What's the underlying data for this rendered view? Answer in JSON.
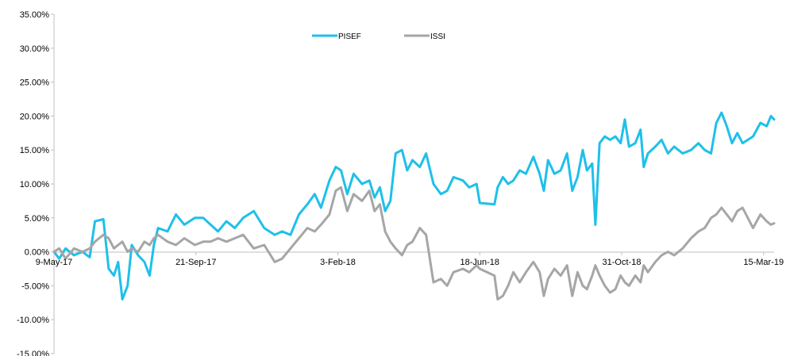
{
  "chart_data": {
    "type": "line",
    "title": "",
    "xlabel": "",
    "ylabel": "",
    "ylim": [
      -15,
      35
    ],
    "y_ticks": [
      35,
      30,
      25,
      20,
      15,
      10,
      5,
      0,
      -5,
      -10,
      -15
    ],
    "y_tick_labels": [
      "35.00%",
      "30.00%",
      "25.00%",
      "20.00%",
      "15.00%",
      "10.00%",
      "5.00%",
      "0.00%",
      "-5.00%",
      "-10.00%",
      "-15.00%"
    ],
    "x_range": [
      "2017-05-09",
      "2019-03-25"
    ],
    "x_tick_labels": [
      {
        "date": "2017-05-09",
        "label": "9-May-17"
      },
      {
        "date": "2017-09-21",
        "label": "21-Sep-17"
      },
      {
        "date": "2018-02-03",
        "label": "3-Feb-18"
      },
      {
        "date": "2018-06-18",
        "label": "18-Jun-18"
      },
      {
        "date": "2018-10-31",
        "label": "31-Oct-18"
      },
      {
        "date": "2019-03-15",
        "label": "15-Mar-19"
      }
    ],
    "legend": {
      "position": "top-center",
      "entries": [
        "PISEF",
        "ISSI"
      ]
    },
    "grid": false,
    "series": [
      {
        "name": "PISEF",
        "color": "#1ec0ea",
        "points": [
          [
            "2017-05-09",
            0.0
          ],
          [
            "2017-05-14",
            -1.0
          ],
          [
            "2017-05-20",
            0.5
          ],
          [
            "2017-05-28",
            -0.5
          ],
          [
            "2017-06-05",
            0.0
          ],
          [
            "2017-06-12",
            -0.8
          ],
          [
            "2017-06-17",
            4.5
          ],
          [
            "2017-06-25",
            4.8
          ],
          [
            "2017-06-30",
            -2.5
          ],
          [
            "2017-07-05",
            -3.5
          ],
          [
            "2017-07-09",
            -1.5
          ],
          [
            "2017-07-13",
            -7.0
          ],
          [
            "2017-07-18",
            -5.0
          ],
          [
            "2017-07-22",
            1.0
          ],
          [
            "2017-07-28",
            -0.5
          ],
          [
            "2017-08-03",
            -1.5
          ],
          [
            "2017-08-08",
            -3.5
          ],
          [
            "2017-08-12",
            1.0
          ],
          [
            "2017-08-16",
            3.5
          ],
          [
            "2017-08-25",
            3.0
          ],
          [
            "2017-09-02",
            5.5
          ],
          [
            "2017-09-10",
            4.0
          ],
          [
            "2017-09-20",
            5.0
          ],
          [
            "2017-09-28",
            5.0
          ],
          [
            "2017-10-05",
            4.0
          ],
          [
            "2017-10-12",
            3.0
          ],
          [
            "2017-10-20",
            4.5
          ],
          [
            "2017-10-28",
            3.5
          ],
          [
            "2017-11-05",
            5.0
          ],
          [
            "2017-11-15",
            6.0
          ],
          [
            "2017-11-25",
            3.5
          ],
          [
            "2017-12-05",
            2.5
          ],
          [
            "2017-12-12",
            3.0
          ],
          [
            "2017-12-20",
            2.5
          ],
          [
            "2017-12-28",
            5.5
          ],
          [
            "2018-01-05",
            7.0
          ],
          [
            "2018-01-12",
            8.5
          ],
          [
            "2018-01-18",
            6.5
          ],
          [
            "2018-01-26",
            10.5
          ],
          [
            "2018-02-01",
            12.5
          ],
          [
            "2018-02-06",
            12.0
          ],
          [
            "2018-02-12",
            8.5
          ],
          [
            "2018-02-18",
            11.5
          ],
          [
            "2018-02-26",
            10.0
          ],
          [
            "2018-03-05",
            10.5
          ],
          [
            "2018-03-10",
            8.0
          ],
          [
            "2018-03-15",
            9.5
          ],
          [
            "2018-03-20",
            6.0
          ],
          [
            "2018-03-25",
            7.5
          ],
          [
            "2018-03-30",
            14.5
          ],
          [
            "2018-04-05",
            15.0
          ],
          [
            "2018-04-10",
            12.0
          ],
          [
            "2018-04-15",
            13.5
          ],
          [
            "2018-04-22",
            12.5
          ],
          [
            "2018-04-28",
            14.5
          ],
          [
            "2018-05-05",
            10.0
          ],
          [
            "2018-05-12",
            8.5
          ],
          [
            "2018-05-18",
            9.0
          ],
          [
            "2018-05-24",
            11.0
          ],
          [
            "2018-06-02",
            10.5
          ],
          [
            "2018-06-08",
            9.5
          ],
          [
            "2018-06-15",
            10.0
          ],
          [
            "2018-06-18",
            7.2
          ],
          [
            "2018-07-02",
            7.0
          ],
          [
            "2018-07-05",
            9.5
          ],
          [
            "2018-07-10",
            11.0
          ],
          [
            "2018-07-15",
            10.0
          ],
          [
            "2018-07-20",
            10.5
          ],
          [
            "2018-07-26",
            12.0
          ],
          [
            "2018-08-01",
            11.5
          ],
          [
            "2018-08-08",
            14.0
          ],
          [
            "2018-08-14",
            11.5
          ],
          [
            "2018-08-18",
            9.0
          ],
          [
            "2018-08-22",
            13.5
          ],
          [
            "2018-08-28",
            11.5
          ],
          [
            "2018-09-03",
            12.0
          ],
          [
            "2018-09-09",
            14.5
          ],
          [
            "2018-09-14",
            9.0
          ],
          [
            "2018-09-19",
            11.0
          ],
          [
            "2018-09-24",
            15.0
          ],
          [
            "2018-09-28",
            12.0
          ],
          [
            "2018-10-03",
            13.0
          ],
          [
            "2018-10-06",
            4.0
          ],
          [
            "2018-10-10",
            16.0
          ],
          [
            "2018-10-15",
            17.0
          ],
          [
            "2018-10-20",
            16.5
          ],
          [
            "2018-10-25",
            17.0
          ],
          [
            "2018-10-30",
            16.0
          ],
          [
            "2018-11-03",
            19.5
          ],
          [
            "2018-11-07",
            15.5
          ],
          [
            "2018-11-13",
            16.0
          ],
          [
            "2018-11-18",
            18.0
          ],
          [
            "2018-11-21",
            12.5
          ],
          [
            "2018-11-25",
            14.5
          ],
          [
            "2018-12-02",
            15.5
          ],
          [
            "2018-12-08",
            16.5
          ],
          [
            "2018-12-14",
            14.5
          ],
          [
            "2018-12-20",
            15.5
          ],
          [
            "2018-12-28",
            14.5
          ],
          [
            "2019-01-05",
            15.0
          ],
          [
            "2019-01-12",
            16.0
          ],
          [
            "2019-01-18",
            15.0
          ],
          [
            "2019-01-24",
            14.5
          ],
          [
            "2019-01-29",
            19.0
          ],
          [
            "2019-02-03",
            20.5
          ],
          [
            "2019-02-08",
            18.5
          ],
          [
            "2019-02-13",
            16.0
          ],
          [
            "2019-02-18",
            17.5
          ],
          [
            "2019-02-23",
            16.0
          ],
          [
            "2019-02-28",
            16.5
          ],
          [
            "2019-03-05",
            17.0
          ],
          [
            "2019-03-12",
            19.0
          ],
          [
            "2019-03-18",
            18.5
          ],
          [
            "2019-03-22",
            20.0
          ],
          [
            "2019-03-25",
            19.5
          ]
        ]
      },
      {
        "name": "ISSI",
        "color": "#a6a6a6",
        "points": [
          [
            "2017-05-09",
            0.0
          ],
          [
            "2017-05-14",
            0.5
          ],
          [
            "2017-05-20",
            -1.0
          ],
          [
            "2017-05-28",
            0.5
          ],
          [
            "2017-06-05",
            0.0
          ],
          [
            "2017-06-12",
            0.5
          ],
          [
            "2017-06-17",
            1.5
          ],
          [
            "2017-06-25",
            2.5
          ],
          [
            "2017-06-30",
            2.0
          ],
          [
            "2017-07-05",
            0.5
          ],
          [
            "2017-07-09",
            1.0
          ],
          [
            "2017-07-13",
            1.5
          ],
          [
            "2017-07-18",
            0.0
          ],
          [
            "2017-07-22",
            0.5
          ],
          [
            "2017-07-28",
            0.0
          ],
          [
            "2017-08-03",
            1.5
          ],
          [
            "2017-08-08",
            1.0
          ],
          [
            "2017-08-12",
            2.0
          ],
          [
            "2017-08-16",
            2.5
          ],
          [
            "2017-08-25",
            1.5
          ],
          [
            "2017-09-02",
            1.0
          ],
          [
            "2017-09-10",
            2.0
          ],
          [
            "2017-09-20",
            1.0
          ],
          [
            "2017-09-28",
            1.5
          ],
          [
            "2017-10-05",
            1.5
          ],
          [
            "2017-10-12",
            2.0
          ],
          [
            "2017-10-20",
            1.5
          ],
          [
            "2017-10-28",
            2.0
          ],
          [
            "2017-11-05",
            2.5
          ],
          [
            "2017-11-15",
            0.5
          ],
          [
            "2017-11-25",
            1.0
          ],
          [
            "2017-12-05",
            -1.5
          ],
          [
            "2017-12-12",
            -1.0
          ],
          [
            "2017-12-20",
            0.5
          ],
          [
            "2017-12-28",
            2.0
          ],
          [
            "2018-01-05",
            3.5
          ],
          [
            "2018-01-12",
            3.0
          ],
          [
            "2018-01-18",
            4.0
          ],
          [
            "2018-01-26",
            5.5
          ],
          [
            "2018-02-01",
            9.0
          ],
          [
            "2018-02-06",
            9.5
          ],
          [
            "2018-02-12",
            6.0
          ],
          [
            "2018-02-18",
            8.5
          ],
          [
            "2018-02-26",
            7.5
          ],
          [
            "2018-03-05",
            9.0
          ],
          [
            "2018-03-10",
            6.0
          ],
          [
            "2018-03-15",
            7.0
          ],
          [
            "2018-03-20",
            3.0
          ],
          [
            "2018-03-25",
            1.5
          ],
          [
            "2018-03-30",
            0.5
          ],
          [
            "2018-04-05",
            -0.5
          ],
          [
            "2018-04-10",
            1.0
          ],
          [
            "2018-04-15",
            1.5
          ],
          [
            "2018-04-22",
            3.5
          ],
          [
            "2018-04-28",
            2.5
          ],
          [
            "2018-05-05",
            -4.5
          ],
          [
            "2018-05-12",
            -4.0
          ],
          [
            "2018-05-18",
            -5.0
          ],
          [
            "2018-05-24",
            -3.0
          ],
          [
            "2018-06-02",
            -2.5
          ],
          [
            "2018-06-08",
            -3.0
          ],
          [
            "2018-06-15",
            -2.0
          ],
          [
            "2018-06-18",
            -2.5
          ],
          [
            "2018-07-02",
            -3.5
          ],
          [
            "2018-07-05",
            -7.0
          ],
          [
            "2018-07-10",
            -6.5
          ],
          [
            "2018-07-15",
            -5.0
          ],
          [
            "2018-07-20",
            -3.0
          ],
          [
            "2018-07-26",
            -4.5
          ],
          [
            "2018-08-01",
            -3.0
          ],
          [
            "2018-08-08",
            -1.5
          ],
          [
            "2018-08-14",
            -3.0
          ],
          [
            "2018-08-18",
            -6.5
          ],
          [
            "2018-08-22",
            -4.0
          ],
          [
            "2018-08-28",
            -2.5
          ],
          [
            "2018-09-03",
            -3.5
          ],
          [
            "2018-09-09",
            -2.0
          ],
          [
            "2018-09-14",
            -6.5
          ],
          [
            "2018-09-19",
            -3.0
          ],
          [
            "2018-09-24",
            -5.0
          ],
          [
            "2018-09-28",
            -5.5
          ],
          [
            "2018-10-03",
            -3.5
          ],
          [
            "2018-10-06",
            -2.0
          ],
          [
            "2018-10-10",
            -3.5
          ],
          [
            "2018-10-15",
            -5.0
          ],
          [
            "2018-10-20",
            -6.0
          ],
          [
            "2018-10-25",
            -5.5
          ],
          [
            "2018-10-30",
            -3.5
          ],
          [
            "2018-11-03",
            -4.5
          ],
          [
            "2018-11-07",
            -5.0
          ],
          [
            "2018-11-13",
            -3.5
          ],
          [
            "2018-11-18",
            -4.5
          ],
          [
            "2018-11-21",
            -2.0
          ],
          [
            "2018-11-25",
            -3.0
          ],
          [
            "2018-12-02",
            -1.5
          ],
          [
            "2018-12-08",
            -0.5
          ],
          [
            "2018-12-14",
            0.0
          ],
          [
            "2018-12-20",
            -0.5
          ],
          [
            "2018-12-28",
            0.5
          ],
          [
            "2019-01-05",
            2.0
          ],
          [
            "2019-01-12",
            3.0
          ],
          [
            "2019-01-18",
            3.5
          ],
          [
            "2019-01-24",
            5.0
          ],
          [
            "2019-01-29",
            5.5
          ],
          [
            "2019-02-03",
            6.5
          ],
          [
            "2019-02-08",
            5.5
          ],
          [
            "2019-02-13",
            4.5
          ],
          [
            "2019-02-18",
            6.0
          ],
          [
            "2019-02-23",
            6.5
          ],
          [
            "2019-02-28",
            5.0
          ],
          [
            "2019-03-05",
            3.5
          ],
          [
            "2019-03-12",
            5.5
          ],
          [
            "2019-03-18",
            4.5
          ],
          [
            "2019-03-22",
            4.0
          ],
          [
            "2019-03-25",
            4.2
          ]
        ]
      }
    ]
  }
}
